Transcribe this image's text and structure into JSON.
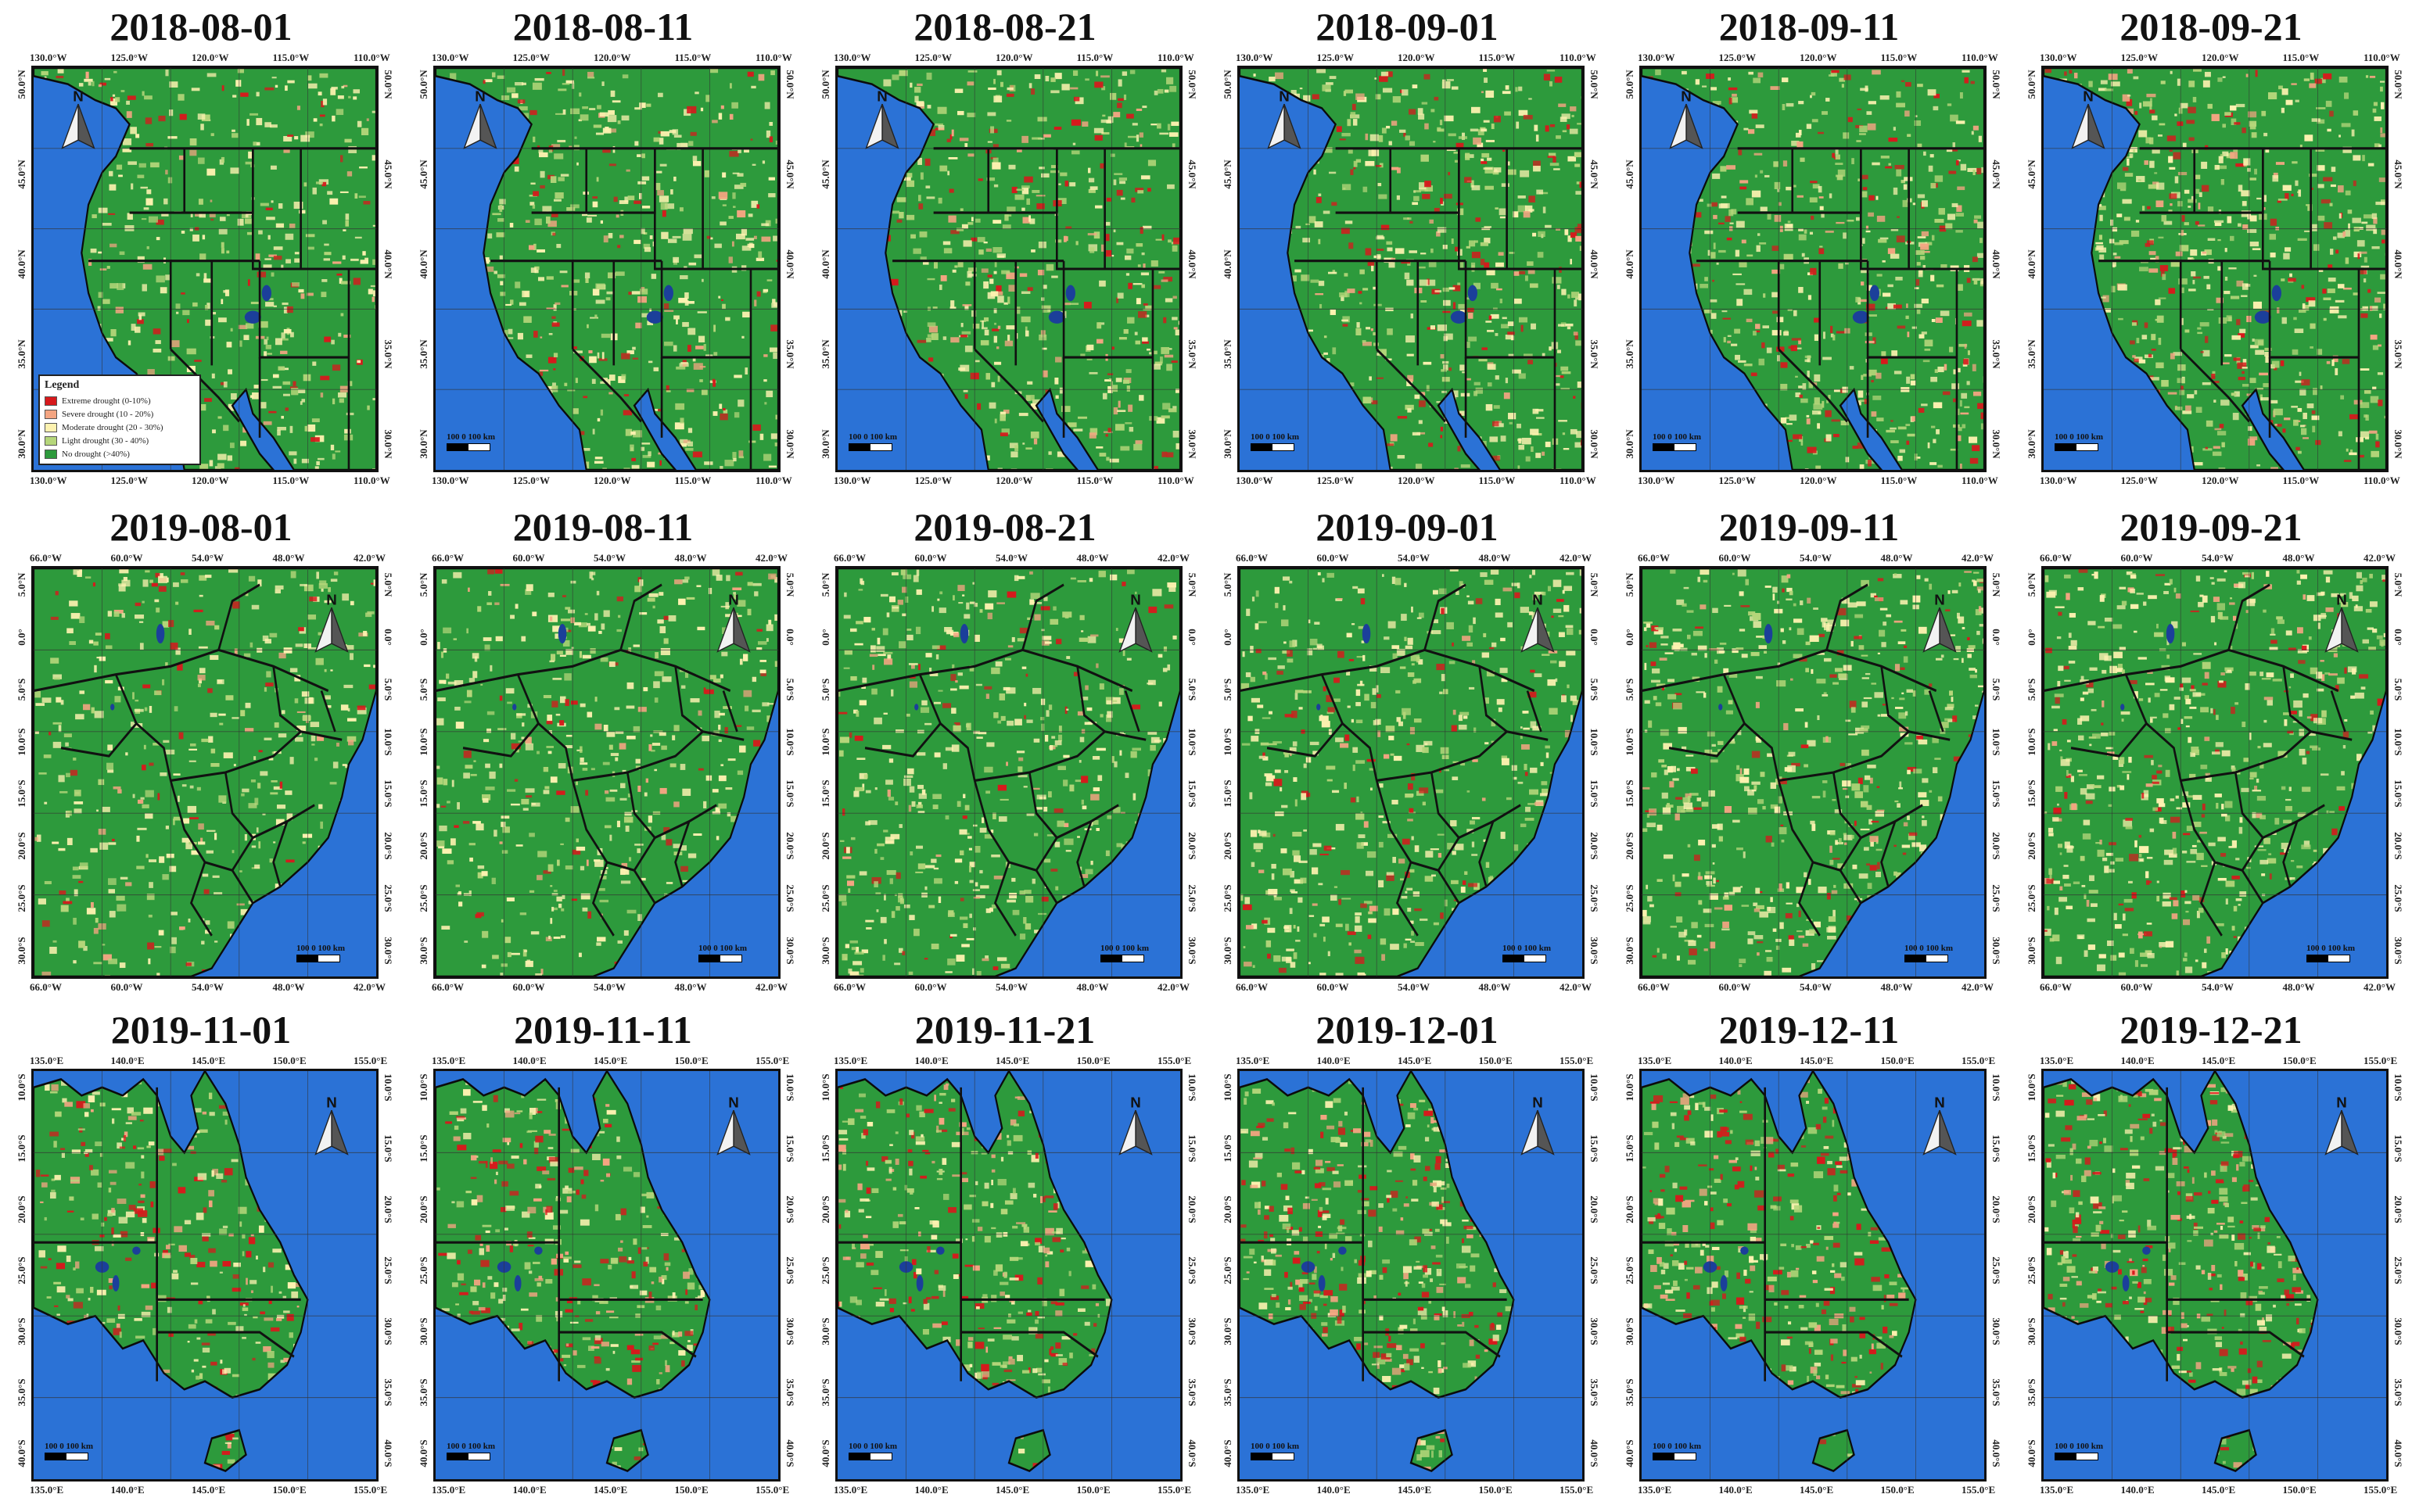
{
  "rows": [
    {
      "region": "usa",
      "dates": [
        "2018-08-01",
        "2018-08-11",
        "2018-08-21",
        "2018-09-01",
        "2018-09-11",
        "2018-09-21"
      ],
      "lon_labels": [
        "130.0°W",
        "125.0°W",
        "120.0°W",
        "115.0°W",
        "110.0°W"
      ],
      "lat_labels": [
        "50.0°N",
        "45.0°N",
        "40.0°N",
        "35.0°N",
        "30.0°N"
      ],
      "scale_label": "100 0 100 km",
      "seed": 11,
      "drought_level": 0.25
    },
    {
      "region": "brazil",
      "dates": [
        "2019-08-01",
        "2019-08-11",
        "2019-08-21",
        "2019-09-01",
        "2019-09-11",
        "2019-09-21"
      ],
      "lon_labels": [
        "66.0°W",
        "60.0°W",
        "54.0°W",
        "48.0°W",
        "42.0°W"
      ],
      "lat_labels": [
        "5.0°N",
        "0.0°",
        "5.0°S",
        "10.0°S",
        "15.0°S",
        "20.0°S",
        "25.0°S",
        "30.0°S"
      ],
      "scale_label": "100 0 100 km",
      "seed": 37,
      "drought_level": 0.15
    },
    {
      "region": "australia",
      "dates": [
        "2019-11-01",
        "2019-11-11",
        "2019-11-21",
        "2019-12-01",
        "2019-12-11",
        "2019-12-21"
      ],
      "lon_labels": [
        "135.0°E",
        "140.0°E",
        "145.0°E",
        "150.0°E",
        "155.0°E"
      ],
      "lat_labels": [
        "10.0°S",
        "15.0°S",
        "20.0°S",
        "25.0°S",
        "30.0°S",
        "35.0°S",
        "40.0°S"
      ],
      "scale_label": "100 0 100 km",
      "seed": 71,
      "drought_level": 0.45
    }
  ],
  "legend": {
    "title": "Legend",
    "items": [
      {
        "label": "Extreme drought (0-10%)",
        "color": "#d7191c"
      },
      {
        "label": "Severe drought (10 - 20%)",
        "color": "#f4a582"
      },
      {
        "label": "Moderate drought (20 - 30%)",
        "color": "#fdf2b0"
      },
      {
        "label": "Light drought (30 - 40%)",
        "color": "#b5d67a"
      },
      {
        "label": "No drought (>40%)",
        "color": "#2d9a3c"
      }
    ]
  },
  "compass_letter": "N",
  "colors": {
    "water": "#2b72d6",
    "land": "#2d9a3c",
    "light": "#b5d67a",
    "moderate": "#fdf2b0",
    "severe": "#f4a582",
    "extreme": "#d7191c",
    "border": "#111111"
  }
}
